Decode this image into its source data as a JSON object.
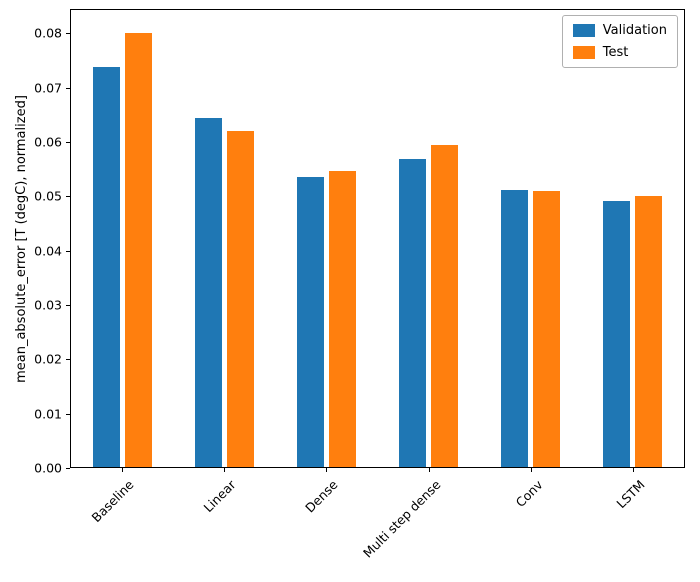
{
  "chart_data": {
    "type": "bar",
    "title": "",
    "categories": [
      "Baseline",
      "Linear",
      "Dense",
      "Multi step dense",
      "Conv",
      "LSTM"
    ],
    "series": [
      {
        "name": "Validation",
        "color": "#1f77b4",
        "values": [
          0.074,
          0.0645,
          0.0537,
          0.057,
          0.0512,
          0.0492
        ]
      },
      {
        "name": "Test",
        "color": "#ff7f0e",
        "values": [
          0.0802,
          0.0622,
          0.0548,
          0.0596,
          0.051,
          0.0501
        ]
      }
    ],
    "xlabel": "",
    "ylabel": "mean_absolute_error [T (degC), normalized]",
    "ylim": [
      0,
      0.0845
    ],
    "yticks": [
      0.0,
      0.01,
      0.02,
      0.03,
      0.04,
      0.05,
      0.06,
      0.07,
      0.08
    ],
    "ytick_decimals": 2,
    "grid": false,
    "legend_position": "upper right",
    "xtick_rotation": 45
  }
}
